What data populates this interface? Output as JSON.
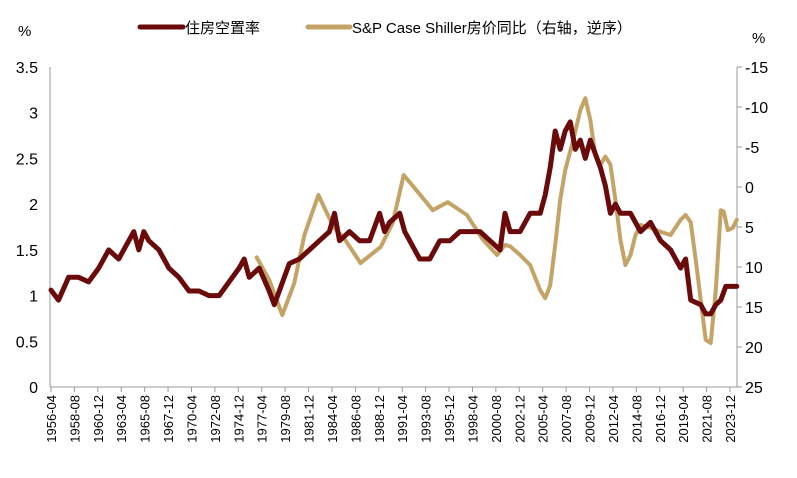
{
  "chart_data": {
    "type": "line",
    "left_unit": "%",
    "right_unit": "%",
    "legend_placement": "top",
    "grid": false,
    "left_axis": {
      "ylim": [
        0,
        3.5
      ],
      "ticks": [
        "0",
        "0.5",
        "1",
        "1.5",
        "2",
        "2.5",
        "3",
        "3.5"
      ]
    },
    "right_axis": {
      "ylim": [
        -15,
        25
      ],
      "reversed": true,
      "ticks": [
        "-15",
        "-10",
        "-5",
        "0",
        "5",
        "10",
        "15",
        "20",
        "25"
      ]
    },
    "x_range": [
      1956.25,
      2024.6
    ],
    "x_tick_labels": [
      "1956-04",
      "1958-08",
      "1960-12",
      "1963-04",
      "1965-08",
      "1967-12",
      "1970-04",
      "1972-08",
      "1974-12",
      "1977-04",
      "1979-08",
      "1981-12",
      "1984-04",
      "1986-08",
      "1988-12",
      "1991-04",
      "1993-08",
      "1995-12",
      "1998-04",
      "2000-08",
      "2002-12",
      "2005-04",
      "2007-08",
      "2009-12",
      "2012-04",
      "2014-08",
      "2016-12",
      "2019-04",
      "2021-08",
      "2023-12"
    ],
    "series": [
      {
        "name": "住房空置率",
        "axis": "left",
        "color": "#6b0a0a",
        "points": [
          [
            1956.25,
            1.06
          ],
          [
            1957,
            0.95
          ],
          [
            1958,
            1.2
          ],
          [
            1959,
            1.2
          ],
          [
            1960,
            1.15
          ],
          [
            1961,
            1.3
          ],
          [
            1962,
            1.5
          ],
          [
            1963,
            1.4
          ],
          [
            1963.5,
            1.5
          ],
          [
            1964,
            1.6
          ],
          [
            1964.5,
            1.7
          ],
          [
            1965,
            1.5
          ],
          [
            1965.5,
            1.7
          ],
          [
            1966,
            1.6
          ],
          [
            1967,
            1.5
          ],
          [
            1968,
            1.3
          ],
          [
            1969,
            1.2
          ],
          [
            1970,
            1.05
          ],
          [
            1971,
            1.05
          ],
          [
            1972,
            1.0
          ],
          [
            1973,
            1.0
          ],
          [
            1974,
            1.15
          ],
          [
            1975,
            1.3
          ],
          [
            1975.5,
            1.4
          ],
          [
            1976,
            1.2
          ],
          [
            1977,
            1.3
          ],
          [
            1978,
            1.05
          ],
          [
            1978.5,
            0.9
          ],
          [
            1979,
            1.05
          ],
          [
            1980,
            1.35
          ],
          [
            1981,
            1.4
          ],
          [
            1982,
            1.5
          ],
          [
            1983,
            1.6
          ],
          [
            1984,
            1.7
          ],
          [
            1984.5,
            1.9
          ],
          [
            1985,
            1.6
          ],
          [
            1986,
            1.7
          ],
          [
            1987,
            1.6
          ],
          [
            1988,
            1.6
          ],
          [
            1989,
            1.9
          ],
          [
            1989.5,
            1.7
          ],
          [
            1990,
            1.8
          ],
          [
            1991,
            1.9
          ],
          [
            1991.5,
            1.7
          ],
          [
            1992,
            1.6
          ],
          [
            1993,
            1.4
          ],
          [
            1994,
            1.4
          ],
          [
            1995,
            1.6
          ],
          [
            1996,
            1.6
          ],
          [
            1997,
            1.7
          ],
          [
            1998,
            1.7
          ],
          [
            1999,
            1.7
          ],
          [
            2000,
            1.6
          ],
          [
            2001,
            1.5
          ],
          [
            2001.5,
            1.9
          ],
          [
            2002,
            1.7
          ],
          [
            2003,
            1.7
          ],
          [
            2004,
            1.9
          ],
          [
            2005,
            1.9
          ],
          [
            2005.5,
            2.1
          ],
          [
            2006,
            2.4
          ],
          [
            2006.5,
            2.8
          ],
          [
            2007,
            2.6
          ],
          [
            2007.5,
            2.8
          ],
          [
            2008,
            2.9
          ],
          [
            2008.5,
            2.6
          ],
          [
            2009,
            2.7
          ],
          [
            2009.5,
            2.5
          ],
          [
            2010,
            2.7
          ],
          [
            2011,
            2.4
          ],
          [
            2011.5,
            2.2
          ],
          [
            2012,
            1.9
          ],
          [
            2012.5,
            2.0
          ],
          [
            2013,
            1.9
          ],
          [
            2014,
            1.9
          ],
          [
            2015,
            1.7
          ],
          [
            2016,
            1.8
          ],
          [
            2017,
            1.6
          ],
          [
            2018,
            1.5
          ],
          [
            2019,
            1.3
          ],
          [
            2019.5,
            1.4
          ],
          [
            2020,
            0.95
          ],
          [
            2021,
            0.9
          ],
          [
            2021.5,
            0.8
          ],
          [
            2022,
            0.8
          ],
          [
            2022.5,
            0.9
          ],
          [
            2023,
            0.95
          ],
          [
            2023.5,
            1.1
          ],
          [
            2024.6,
            1.1
          ]
        ]
      },
      {
        "name": "S&P Case Shiller房价同比（右轴，逆序）",
        "axis": "right",
        "color": "#c4a466",
        "points": [
          [
            1976.75,
            8.8
          ],
          [
            1978,
            11.6
          ],
          [
            1979.3,
            16
          ],
          [
            1980.5,
            12
          ],
          [
            1981.5,
            6
          ],
          [
            1982.9,
            1.0
          ],
          [
            1984.4,
            5.0
          ],
          [
            1985.5,
            6.5
          ],
          [
            1987.1,
            9.5
          ],
          [
            1989.1,
            7.5
          ],
          [
            1990.3,
            4.5
          ],
          [
            1991.4,
            -1.5
          ],
          [
            1992.8,
            0.6
          ],
          [
            1994.3,
            2.9
          ],
          [
            1995.8,
            1.9
          ],
          [
            1997.7,
            3.5
          ],
          [
            1999.3,
            6.6
          ],
          [
            2000.7,
            8.5
          ],
          [
            2001.5,
            7.25
          ],
          [
            2002,
            7.4
          ],
          [
            2003,
            8.5
          ],
          [
            2004,
            9.75
          ],
          [
            2005,
            12.9
          ],
          [
            2005.5,
            13.9
          ],
          [
            2006,
            12.3
          ],
          [
            2006.5,
            7.25
          ],
          [
            2007,
            1.6
          ],
          [
            2007.5,
            -2.1
          ],
          [
            2008.3,
            -5.9
          ],
          [
            2009,
            -9.6
          ],
          [
            2009.5,
            -11.1
          ],
          [
            2010,
            -8.4
          ],
          [
            2010.5,
            -4
          ],
          [
            2011,
            -2.8
          ],
          [
            2011.5,
            -3.8
          ],
          [
            2012,
            -2.8
          ],
          [
            2012.5,
            1.6
          ],
          [
            2013,
            6.6
          ],
          [
            2013.5,
            9.75
          ],
          [
            2014,
            8.5
          ],
          [
            2014.5,
            6
          ],
          [
            2015,
            4.75
          ],
          [
            2016,
            5.1
          ],
          [
            2017,
            5.6
          ],
          [
            2018,
            6.0
          ],
          [
            2019,
            4.1
          ],
          [
            2019.5,
            3.5
          ],
          [
            2020,
            4.4
          ],
          [
            2020.5,
            9.1
          ],
          [
            2021,
            14.1
          ],
          [
            2021.5,
            19.1
          ],
          [
            2022,
            19.5
          ],
          [
            2022.5,
            12.9
          ],
          [
            2023,
            2.9
          ],
          [
            2023.3,
            3.1
          ],
          [
            2023.7,
            5.4
          ],
          [
            2024.2,
            5.1
          ],
          [
            2024.6,
            4.1
          ]
        ]
      }
    ]
  }
}
